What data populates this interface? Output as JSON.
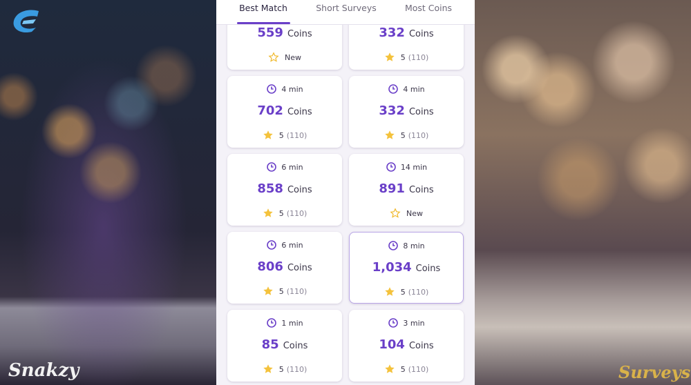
{
  "brand": {
    "left": "Snakzy",
    "right": "Surveys"
  },
  "tabs": [
    "Best Match",
    "Short Surveys",
    "Most Coins"
  ],
  "active_tab": 0,
  "cards": [
    {
      "coins": "559",
      "unit": "Coins",
      "rating": "New"
    },
    {
      "coins": "332",
      "unit": "Coins",
      "rating": "5",
      "count": "(110)"
    },
    {
      "time": "4 min",
      "coins": "702",
      "unit": "Coins",
      "rating": "5",
      "count": "(110)"
    },
    {
      "time": "4 min",
      "coins": "332",
      "unit": "Coins",
      "rating": "5",
      "count": "(110)"
    },
    {
      "time": "6 min",
      "coins": "858",
      "unit": "Coins",
      "rating": "5",
      "count": "(110)"
    },
    {
      "time": "14 min",
      "coins": "891",
      "unit": "Coins",
      "rating": "New"
    },
    {
      "time": "6 min",
      "coins": "806",
      "unit": "Coins",
      "rating": "5",
      "count": "(110)"
    },
    {
      "time": "8 min",
      "coins": "1,034",
      "unit": "Coins",
      "rating": "5",
      "count": "(110)",
      "selected": true
    },
    {
      "time": "1 min",
      "coins": "85",
      "unit": "Coins",
      "rating": "5",
      "count": "(110)"
    },
    {
      "time": "3 min",
      "coins": "104",
      "unit": "Coins",
      "rating": "5",
      "count": "(110)"
    }
  ]
}
